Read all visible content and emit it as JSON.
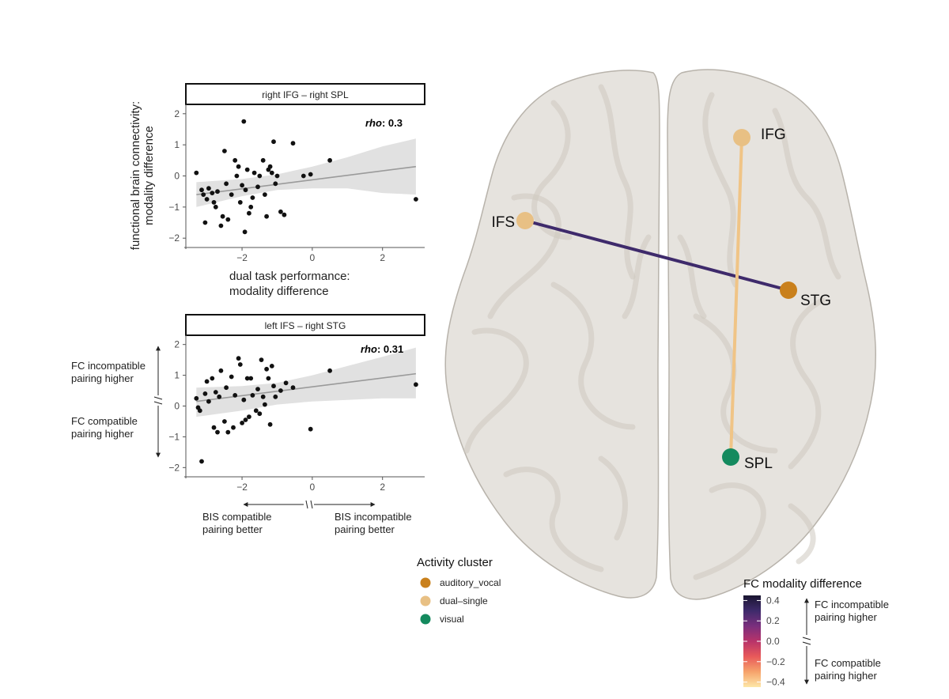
{
  "colors": {
    "auditory_vocal": "#c9801c",
    "dual_single": "#e8c084",
    "visual": "#148a5e",
    "edge_ifs_stg": "#3e2a6b",
    "edge_ifg_spl": "#f0c486",
    "points": "#111111",
    "fit_line": "#9a9a9a",
    "ci_band": "#e1e1e1",
    "brain_fill": "#e6e3de",
    "brain_stroke": "#b8b3ab"
  },
  "plots": [
    {
      "facet": "right IFG – right SPL",
      "rho_label": "rho",
      "rho_value": ": 0.3",
      "xlim": [
        -3.6,
        3.2
      ],
      "ylim": [
        -2.3,
        2.3
      ],
      "xticks": [
        "−2",
        "0",
        "2"
      ],
      "xtick_values": [
        -2,
        0,
        2
      ],
      "yticks": [
        "2",
        "1",
        "0",
        "−1",
        "−2"
      ],
      "ytick_values": [
        2,
        1,
        0,
        -1,
        -2
      ],
      "fit": {
        "x1": -3.3,
        "y1": -0.6,
        "x2": 2.95,
        "y2": 0.3
      },
      "ci": {
        "x": [
          -3.3,
          -2,
          -1,
          0,
          1,
          2,
          2.95
        ],
        "upper": [
          -0.2,
          -0.1,
          0.05,
          0.3,
          0.6,
          0.95,
          1.2
        ],
        "lower": [
          -1.0,
          -0.65,
          -0.45,
          -0.4,
          -0.4,
          -0.55,
          -0.6
        ]
      },
      "points": [
        [
          -3.3,
          0.1
        ],
        [
          -3.15,
          -0.45
        ],
        [
          -3.1,
          -0.6
        ],
        [
          -3.05,
          -1.5
        ],
        [
          -3.0,
          -0.75
        ],
        [
          -2.95,
          -0.4
        ],
        [
          -2.85,
          -0.55
        ],
        [
          -2.8,
          -0.85
        ],
        [
          -2.75,
          -1.0
        ],
        [
          -2.7,
          -0.5
        ],
        [
          -2.6,
          -1.6
        ],
        [
          -2.55,
          -1.3
        ],
        [
          -2.5,
          0.8
        ],
        [
          -2.45,
          -0.25
        ],
        [
          -2.4,
          -1.4
        ],
        [
          -2.3,
          -0.6
        ],
        [
          -2.2,
          0.5
        ],
        [
          -2.15,
          0.0
        ],
        [
          -2.1,
          0.3
        ],
        [
          -2.05,
          -0.85
        ],
        [
          -2.0,
          -0.3
        ],
        [
          -1.95,
          1.75
        ],
        [
          -1.92,
          -1.8
        ],
        [
          -1.9,
          -0.45
        ],
        [
          -1.85,
          0.2
        ],
        [
          -1.8,
          -1.2
        ],
        [
          -1.75,
          -1.0
        ],
        [
          -1.7,
          -0.7
        ],
        [
          -1.65,
          0.1
        ],
        [
          -1.55,
          -0.35
        ],
        [
          -1.5,
          0.0
        ],
        [
          -1.4,
          0.5
        ],
        [
          -1.35,
          -0.6
        ],
        [
          -1.3,
          -1.3
        ],
        [
          -1.25,
          0.2
        ],
        [
          -1.2,
          0.3
        ],
        [
          -1.15,
          0.1
        ],
        [
          -1.1,
          1.1
        ],
        [
          -1.05,
          -0.25
        ],
        [
          -1.0,
          0.0
        ],
        [
          -0.9,
          -1.15
        ],
        [
          -0.8,
          -1.25
        ],
        [
          -0.55,
          1.05
        ],
        [
          -0.25,
          0.0
        ],
        [
          -0.05,
          0.05
        ],
        [
          0.5,
          0.5
        ],
        [
          2.95,
          -0.75
        ]
      ],
      "ylabel_lines": [
        "functional brain connectivity:",
        "modality difference"
      ],
      "xlabel_lines": [
        "dual task performance:",
        "modality difference"
      ]
    },
    {
      "facet": "left IFS – right STG",
      "rho_label": "rho",
      "rho_value": ": 0.31",
      "xlim": [
        -3.6,
        3.2
      ],
      "ylim": [
        -2.3,
        2.3
      ],
      "xticks": [
        "−2",
        "0",
        "2"
      ],
      "xtick_values": [
        -2,
        0,
        2
      ],
      "yticks": [
        "2",
        "1",
        "0",
        "−1",
        "−2"
      ],
      "ytick_values": [
        2,
        1,
        0,
        -1,
        -2
      ],
      "fit": {
        "x1": -3.3,
        "y1": 0.15,
        "x2": 2.95,
        "y2": 1.05
      },
      "ci": {
        "x": [
          -3.3,
          -2,
          -1,
          0,
          1,
          2,
          2.95
        ],
        "upper": [
          0.6,
          0.65,
          0.75,
          1.0,
          1.3,
          1.6,
          1.9
        ],
        "lower": [
          -0.35,
          -0.15,
          0.05,
          0.15,
          0.2,
          0.25,
          0.25
        ]
      },
      "points": [
        [
          -3.3,
          0.25
        ],
        [
          -3.25,
          -0.05
        ],
        [
          -3.2,
          -0.15
        ],
        [
          -3.15,
          -1.8
        ],
        [
          -3.05,
          0.4
        ],
        [
          -3.0,
          0.8
        ],
        [
          -2.95,
          0.15
        ],
        [
          -2.85,
          0.9
        ],
        [
          -2.8,
          -0.7
        ],
        [
          -2.75,
          0.45
        ],
        [
          -2.7,
          -0.85
        ],
        [
          -2.65,
          0.3
        ],
        [
          -2.6,
          1.15
        ],
        [
          -2.5,
          -0.5
        ],
        [
          -2.45,
          0.6
        ],
        [
          -2.4,
          -0.85
        ],
        [
          -2.3,
          0.95
        ],
        [
          -2.25,
          -0.7
        ],
        [
          -2.2,
          0.35
        ],
        [
          -2.1,
          1.55
        ],
        [
          -2.05,
          1.35
        ],
        [
          -2.0,
          -0.55
        ],
        [
          -1.95,
          0.2
        ],
        [
          -1.9,
          -0.45
        ],
        [
          -1.85,
          0.9
        ],
        [
          -1.8,
          -0.35
        ],
        [
          -1.75,
          0.9
        ],
        [
          -1.7,
          0.35
        ],
        [
          -1.6,
          -0.15
        ],
        [
          -1.55,
          0.55
        ],
        [
          -1.5,
          -0.25
        ],
        [
          -1.45,
          1.5
        ],
        [
          -1.4,
          0.3
        ],
        [
          -1.35,
          0.05
        ],
        [
          -1.3,
          1.2
        ],
        [
          -1.25,
          0.9
        ],
        [
          -1.2,
          -0.6
        ],
        [
          -1.15,
          1.3
        ],
        [
          -1.1,
          0.65
        ],
        [
          -1.05,
          0.3
        ],
        [
          -0.9,
          0.5
        ],
        [
          -0.75,
          0.75
        ],
        [
          -0.55,
          0.6
        ],
        [
          -0.05,
          -0.75
        ],
        [
          0.5,
          1.15
        ],
        [
          2.95,
          0.7
        ]
      ],
      "side_top": [
        "FC incompatible",
        "pairing higher"
      ],
      "side_bottom": [
        "FC compatible",
        "pairing higher"
      ],
      "bottom_left": [
        "BIS compatible",
        "pairing better"
      ],
      "bottom_right": [
        "BIS incompatible",
        "pairing better"
      ]
    }
  ],
  "nodes": [
    {
      "label": "IFG",
      "cluster": "dual_single"
    },
    {
      "label": "IFS",
      "cluster": "dual_single"
    },
    {
      "label": "STG",
      "cluster": "auditory_vocal"
    },
    {
      "label": "SPL",
      "cluster": "visual"
    }
  ],
  "edges": [
    {
      "from": "IFS",
      "to": "STG",
      "fc_value": 0.3
    },
    {
      "from": "IFG",
      "to": "SPL",
      "fc_value": -0.35
    }
  ],
  "legend_cluster": {
    "title": "Activity cluster",
    "items": [
      {
        "label": "auditory_vocal",
        "cluster": "auditory_vocal"
      },
      {
        "label": "dual–single",
        "cluster": "dual_single"
      },
      {
        "label": "visual",
        "cluster": "visual"
      }
    ]
  },
  "legend_fc": {
    "title": "FC modality difference",
    "ticks": [
      "0.4",
      "0.2",
      "0.0",
      "−0.2",
      "−0.4"
    ],
    "tick_values": [
      0.4,
      0.2,
      0.0,
      -0.2,
      -0.4
    ],
    "range": [
      -0.45,
      0.45
    ],
    "gradient": [
      "#1a1530",
      "#3e2a6b",
      "#7a2f7d",
      "#b8336a",
      "#e85a5a",
      "#f6a36b",
      "#fde7a8"
    ],
    "side_top": [
      "FC incompatible",
      "pairing higher"
    ],
    "side_bottom": [
      "FC compatible",
      "pairing higher"
    ]
  }
}
